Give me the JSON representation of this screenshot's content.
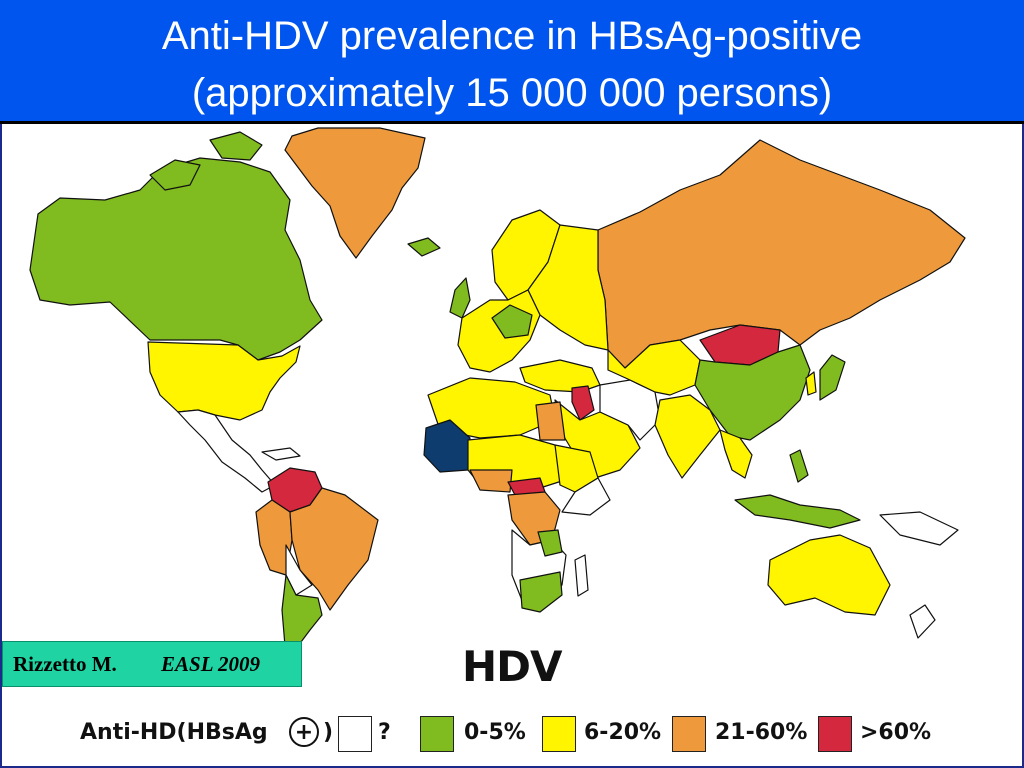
{
  "title": {
    "line1": "Anti-HDV prevalence in HBsAg-positive",
    "line2": "(approximately 15 000 000 persons)"
  },
  "citation": {
    "author": "Rizzetto M.",
    "journal": "EASL 2009"
  },
  "legend": {
    "heading": "HDV",
    "label": "Anti-HD(HBsAg",
    "plus_symbol": "+",
    "close_paren": ")",
    "items": [
      {
        "label": "?",
        "color": "#ffffff"
      },
      {
        "label": "0-5%",
        "color": "#80bb1f"
      },
      {
        "label": "6-20%",
        "color": "#fff500"
      },
      {
        "label": "21-60%",
        "color": "#ee9a3c"
      },
      {
        "label": ">60%",
        "color": "#d3283d"
      }
    ]
  },
  "colors": {
    "title_background": "#0055ee",
    "no_data": "#ffffff",
    "low": "#80bb1f",
    "medium": "#fff500",
    "high": "#ee9a3c",
    "very_high": "#d3283d",
    "special_region": "#0f3c6e",
    "citation_background": "#1fd3a3"
  }
}
